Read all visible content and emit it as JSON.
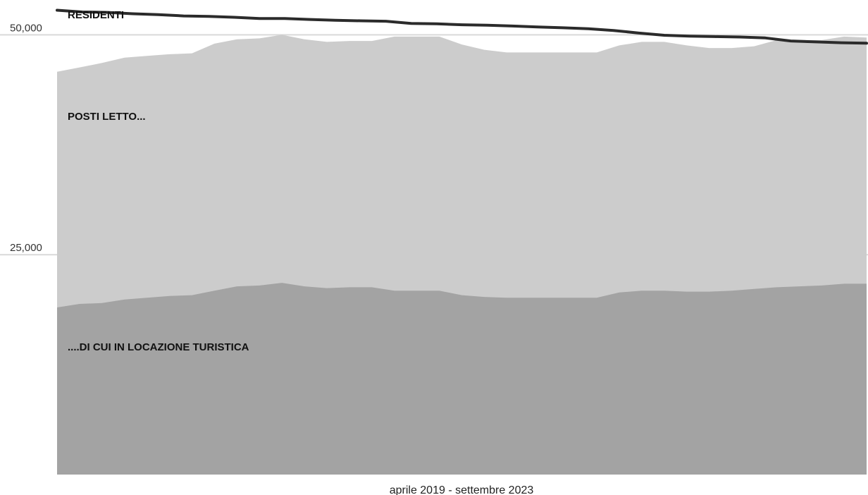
{
  "chart_data": {
    "type": "area",
    "xlabel": "aprile 2019 - settembre 2023",
    "ylim": [
      0,
      53000
    ],
    "y_ticks": [
      {
        "value": 25000,
        "label": "25,000"
      },
      {
        "value": 50000,
        "label": "50,000"
      }
    ],
    "grid": true,
    "labels": {
      "residenti": "RESIDENTI",
      "posti_letto": "POSTI LETTO...",
      "locazione": "....DI CUI IN LOCAZIONE TURISTICA"
    },
    "colors": {
      "residenti": "#2b2b2b",
      "posti_letto": "#cccccc",
      "locazione": "#a3a3a3",
      "grid": "#d9d9d9"
    },
    "series": [
      {
        "key": "residenti",
        "values": [
          52800,
          52600,
          52550,
          52400,
          52300,
          52150,
          52100,
          52000,
          51850,
          51850,
          51750,
          51650,
          51600,
          51550,
          51300,
          51250,
          51150,
          51100,
          51000,
          50900,
          50800,
          50700,
          50500,
          50200,
          49950,
          49850,
          49800,
          49750,
          49650,
          49300,
          49200,
          49100,
          49050
        ]
      },
      {
        "key": "posti_letto",
        "values": [
          45800,
          46300,
          46800,
          47400,
          47600,
          47800,
          47900,
          49000,
          49500,
          49600,
          50000,
          49500,
          49200,
          49300,
          49300,
          49800,
          49800,
          49800,
          48900,
          48300,
          48000,
          48000,
          48000,
          48000,
          48000,
          48800,
          49200,
          49200,
          48800,
          48500,
          48500,
          48700,
          49400,
          49400,
          49400,
          49800,
          49700
        ]
      },
      {
        "key": "locazione",
        "values": [
          19000,
          19400,
          19500,
          19900,
          20100,
          20300,
          20400,
          20900,
          21400,
          21500,
          21800,
          21400,
          21200,
          21300,
          21300,
          20900,
          20900,
          20900,
          20400,
          20200,
          20100,
          20100,
          20100,
          20100,
          20100,
          20700,
          20900,
          20900,
          20800,
          20800,
          20900,
          21100,
          21300,
          21400,
          21500,
          21700,
          21700
        ]
      }
    ]
  }
}
